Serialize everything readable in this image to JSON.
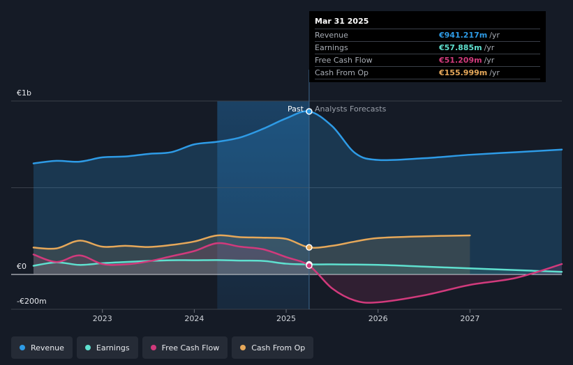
{
  "chart_data": {
    "type": "area",
    "title": "",
    "xlabel": "",
    "ylabel": "",
    "y_tick_labels": [
      "€1b",
      "€0",
      "-€200m"
    ],
    "y_ticks": [
      1000,
      0,
      -200
    ],
    "ylim": [
      -200,
      1000
    ],
    "x_tick_labels": [
      "2023",
      "2024",
      "2025",
      "2026",
      "2027"
    ],
    "x_ticks": [
      2023,
      2024,
      2025,
      2026,
      2027
    ],
    "xlim": [
      2022.25,
      2028.0
    ],
    "divider_x": 2025.25,
    "divider_labels": {
      "past": "Past",
      "forecast": "Analysts Forecasts"
    },
    "series": [
      {
        "name": "Revenue",
        "color": "#2e9be6",
        "points": [
          [
            2022.25,
            640
          ],
          [
            2022.5,
            655
          ],
          [
            2022.75,
            650
          ],
          [
            2023.0,
            675
          ],
          [
            2023.25,
            680
          ],
          [
            2023.5,
            695
          ],
          [
            2023.75,
            705
          ],
          [
            2024.0,
            750
          ],
          [
            2024.25,
            765
          ],
          [
            2024.5,
            790
          ],
          [
            2024.75,
            840
          ],
          [
            2025.0,
            900
          ],
          [
            2025.25,
            940
          ],
          [
            2025.5,
            855
          ],
          [
            2025.75,
            700
          ],
          [
            2026.0,
            660
          ],
          [
            2026.5,
            670
          ],
          [
            2027.0,
            690
          ],
          [
            2027.5,
            705
          ],
          [
            2028.0,
            720
          ]
        ]
      },
      {
        "name": "Earnings",
        "color": "#5fe0cf",
        "points": [
          [
            2022.25,
            50
          ],
          [
            2022.5,
            70
          ],
          [
            2022.75,
            55
          ],
          [
            2023.0,
            65
          ],
          [
            2023.25,
            72
          ],
          [
            2023.5,
            78
          ],
          [
            2023.75,
            82
          ],
          [
            2024.0,
            82
          ],
          [
            2024.25,
            83
          ],
          [
            2024.5,
            80
          ],
          [
            2024.75,
            78
          ],
          [
            2025.0,
            62
          ],
          [
            2025.25,
            58
          ],
          [
            2025.5,
            58
          ],
          [
            2026.0,
            55
          ],
          [
            2026.5,
            45
          ],
          [
            2027.0,
            35
          ],
          [
            2027.5,
            25
          ],
          [
            2028.0,
            15
          ]
        ]
      },
      {
        "name": "Free Cash Flow",
        "color": "#d13a7c",
        "points": [
          [
            2022.25,
            115
          ],
          [
            2022.5,
            72
          ],
          [
            2022.75,
            110
          ],
          [
            2023.0,
            60
          ],
          [
            2023.25,
            58
          ],
          [
            2023.5,
            75
          ],
          [
            2023.75,
            105
          ],
          [
            2024.0,
            135
          ],
          [
            2024.25,
            180
          ],
          [
            2024.5,
            160
          ],
          [
            2024.75,
            145
          ],
          [
            2025.0,
            100
          ],
          [
            2025.25,
            51
          ],
          [
            2025.5,
            -80
          ],
          [
            2025.75,
            -150
          ],
          [
            2026.0,
            -160
          ],
          [
            2026.5,
            -120
          ],
          [
            2027.0,
            -60
          ],
          [
            2027.5,
            -20
          ],
          [
            2028.0,
            60
          ]
        ]
      },
      {
        "name": "Cash From Op",
        "color": "#e6a85a",
        "points": [
          [
            2022.25,
            155
          ],
          [
            2022.5,
            150
          ],
          [
            2022.75,
            195
          ],
          [
            2023.0,
            160
          ],
          [
            2023.25,
            165
          ],
          [
            2023.5,
            158
          ],
          [
            2023.75,
            170
          ],
          [
            2024.0,
            190
          ],
          [
            2024.25,
            225
          ],
          [
            2024.5,
            215
          ],
          [
            2024.75,
            212
          ],
          [
            2025.0,
            205
          ],
          [
            2025.25,
            156
          ],
          [
            2025.5,
            165
          ],
          [
            2025.75,
            190
          ],
          [
            2026.0,
            210
          ],
          [
            2026.5,
            220
          ],
          [
            2027.0,
            225
          ]
        ]
      }
    ],
    "legend": {
      "placement": "bottom"
    },
    "grid": true
  },
  "tooltip": {
    "date": "Mar 31 2025",
    "rows": [
      {
        "name": "Revenue",
        "value": "€941.217m",
        "unit": "/yr",
        "color": "#2e9be6"
      },
      {
        "name": "Earnings",
        "value": "€57.885m",
        "unit": "/yr",
        "color": "#5fe0cf"
      },
      {
        "name": "Free Cash Flow",
        "value": "€51.209m",
        "unit": "/yr",
        "color": "#d13a7c"
      },
      {
        "name": "Cash From Op",
        "value": "€155.999m",
        "unit": "/yr",
        "color": "#e6a85a"
      }
    ]
  },
  "legend": {
    "items": [
      {
        "label": "Revenue",
        "color": "#2e9be6"
      },
      {
        "label": "Earnings",
        "color": "#5fe0cf"
      },
      {
        "label": "Free Cash Flow",
        "color": "#d13a7c"
      },
      {
        "label": "Cash From Op",
        "color": "#e6a85a"
      }
    ]
  }
}
